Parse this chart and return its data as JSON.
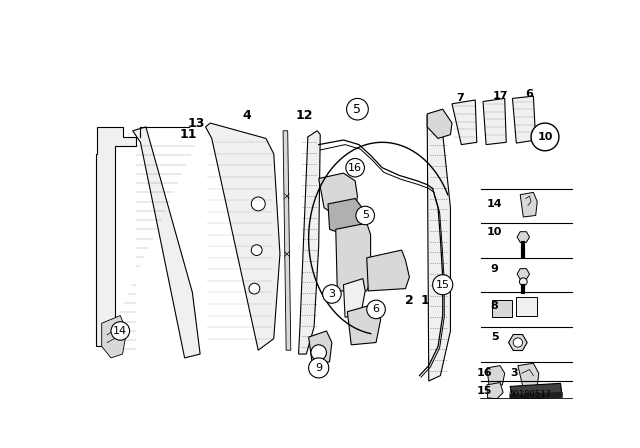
{
  "background_color": "#ffffff",
  "image_id": "00180517",
  "fig_width": 6.4,
  "fig_height": 4.48,
  "dpi": 100,
  "label_positions": {
    "13": [
      0.138,
      0.872,
      false
    ],
    "11": [
      0.158,
      0.843,
      false
    ],
    "4": [
      0.248,
      0.843,
      false
    ],
    "12": [
      0.305,
      0.843,
      false
    ],
    "14_circ": [
      0.082,
      0.763,
      true
    ],
    "16_circ": [
      0.448,
      0.618,
      true
    ],
    "5_circ_center": [
      0.458,
      0.548,
      true
    ],
    "3_circ": [
      0.358,
      0.472,
      true
    ],
    "5_circ_top": [
      0.388,
      0.882,
      true
    ],
    "7": [
      0.558,
      0.882,
      false
    ],
    "17": [
      0.618,
      0.882,
      false
    ],
    "6": [
      0.658,
      0.882,
      false
    ],
    "10_circ": [
      0.7,
      0.798,
      true
    ],
    "15_circ": [
      0.535,
      0.498,
      true
    ],
    "6_circ": [
      0.43,
      0.34,
      true
    ],
    "2": [
      0.465,
      0.285,
      false
    ],
    "1": [
      0.49,
      0.285,
      false
    ],
    "9_circ": [
      0.418,
      0.172,
      true
    ],
    "14_r": [
      0.808,
      0.648,
      false
    ],
    "10_r": [
      0.808,
      0.578,
      false
    ],
    "9_r": [
      0.808,
      0.51,
      false
    ],
    "8_r": [
      0.808,
      0.44,
      false
    ],
    "5_r": [
      0.808,
      0.37,
      false
    ],
    "16_r": [
      0.78,
      0.262,
      false
    ],
    "3_r": [
      0.82,
      0.262,
      false
    ],
    "15_r": [
      0.77,
      0.205,
      false
    ]
  }
}
